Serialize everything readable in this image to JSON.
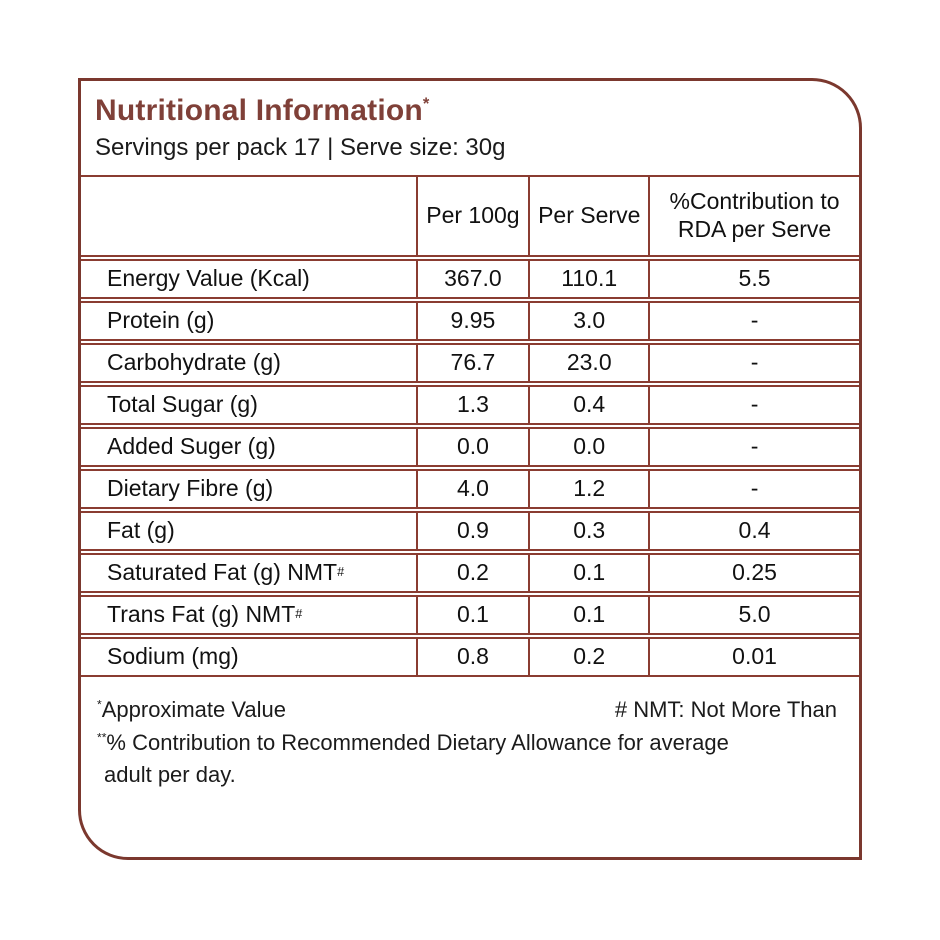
{
  "panel": {
    "title": "Nutritional Information",
    "title_sup": "*",
    "subtitle": "Servings per pack 17 | Serve size: 30g"
  },
  "table": {
    "columns": [
      "",
      "Per 100g",
      "Per Serve",
      "%Contribution to RDA per Serve"
    ],
    "rows": [
      {
        "label": "Energy Value (Kcal)",
        "label_sup": "",
        "per_100g": "367.0",
        "per_serve": "110.1",
        "rda": "5.5"
      },
      {
        "label": "Protein (g)",
        "label_sup": "",
        "per_100g": "9.95",
        "per_serve": "3.0",
        "rda": "-"
      },
      {
        "label": "Carbohydrate (g)",
        "label_sup": "",
        "per_100g": "76.7",
        "per_serve": "23.0",
        "rda": "-"
      },
      {
        "label": "Total Sugar (g)",
        "label_sup": "",
        "per_100g": "1.3",
        "per_serve": "0.4",
        "rda": "-"
      },
      {
        "label": "Added Suger (g)",
        "label_sup": "",
        "per_100g": "0.0",
        "per_serve": "0.0",
        "rda": "-"
      },
      {
        "label": "Dietary Fibre (g)",
        "label_sup": "",
        "per_100g": "4.0",
        "per_serve": "1.2",
        "rda": "-"
      },
      {
        "label": "Fat (g)",
        "label_sup": "",
        "per_100g": "0.9",
        "per_serve": "0.3",
        "rda": "0.4"
      },
      {
        "label": "Saturated Fat (g) NMT",
        "label_sup": "#",
        "per_100g": "0.2",
        "per_serve": "0.1",
        "rda": "0.25"
      },
      {
        "label": "Trans Fat (g) NMT",
        "label_sup": "#",
        "per_100g": "0.1",
        "per_serve": "0.1",
        "rda": "5.0"
      },
      {
        "label": "Sodium (mg)",
        "label_sup": "",
        "per_100g": "0.8",
        "per_serve": "0.2",
        "rda": "0.01"
      }
    ]
  },
  "footnotes": {
    "approx_sup": "*",
    "approx": "Approximate Value",
    "nmt": "# NMT: Not More Than",
    "rda_sup": "**",
    "rda_line1": "% Contribution to Recommended Dietary Allowance for average",
    "rda_line2": "adult per day."
  },
  "colors": {
    "outer_border": "#7b382e",
    "inner_lines": "#8a3c31",
    "title_text": "#7f4038",
    "body_text": "#1b1b1b"
  }
}
